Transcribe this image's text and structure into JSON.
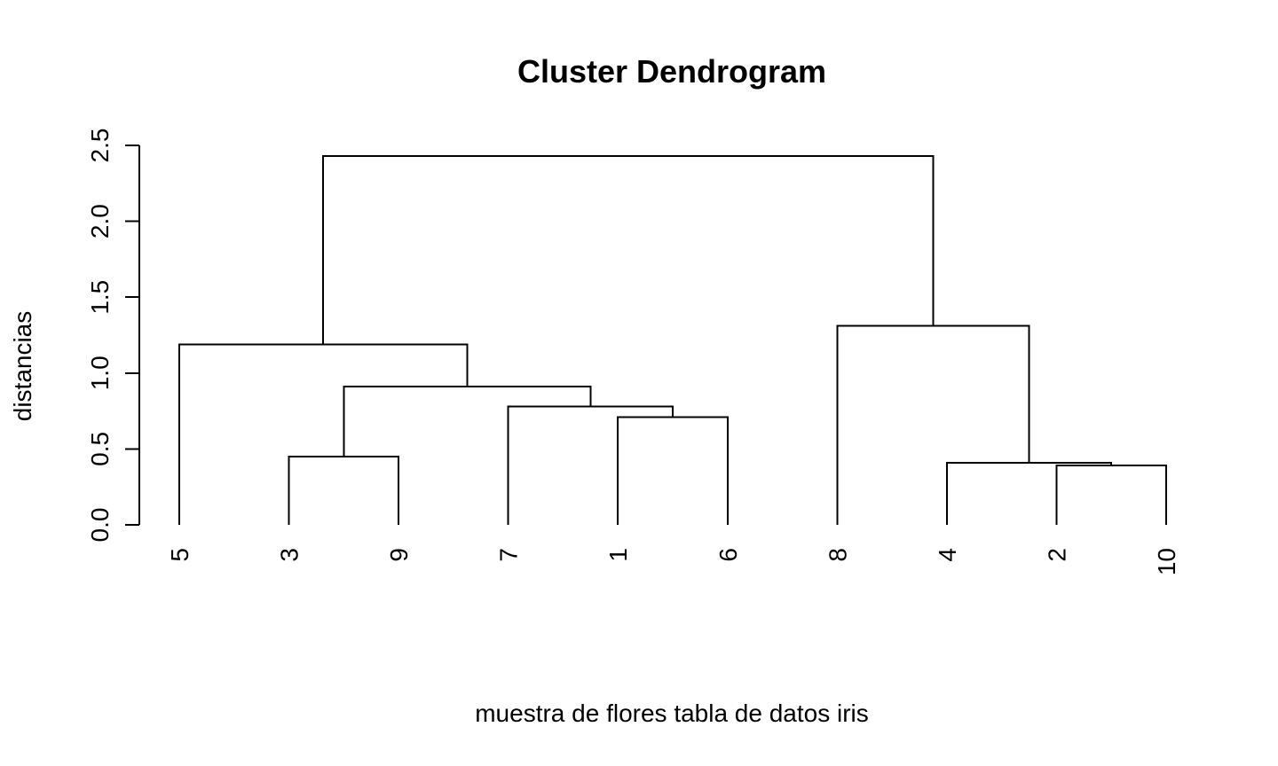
{
  "chart_data": {
    "type": "dendrogram",
    "title": "Cluster Dendrogram",
    "xlabel": "muestra de flores tabla de datos iris",
    "ylabel": "distancias",
    "ylim": [
      0,
      2.5
    ],
    "yticks": [
      "0.0",
      "0.5",
      "1.0",
      "1.5",
      "2.0",
      "2.5"
    ],
    "yticks_values": [
      0,
      0.5,
      1.0,
      1.5,
      2.0,
      2.5
    ],
    "leaf_order": [
      "5",
      "3",
      "9",
      "7",
      "1",
      "6",
      "8",
      "4",
      "2",
      "10"
    ],
    "merges": [
      {
        "a": "2",
        "b": "10",
        "height": 0.39
      },
      {
        "a": "4",
        "b": "2+10",
        "height": 0.41
      },
      {
        "a": "3",
        "b": "9",
        "height": 0.45
      },
      {
        "a": "1",
        "b": "6",
        "height": 0.71
      },
      {
        "a": "7",
        "b": "1+6",
        "height": 0.78
      },
      {
        "a": "3+9",
        "b": "7+1+6",
        "height": 0.91
      },
      {
        "a": "5",
        "b": "3+9+7+1+6",
        "height": 1.19
      },
      {
        "a": "8",
        "b": "4+2+10",
        "height": 1.31
      },
      {
        "a": "5+3+9+7+1+6",
        "b": "8+4+2+10",
        "height": 2.43
      }
    ],
    "grid": false,
    "legend": "none"
  }
}
